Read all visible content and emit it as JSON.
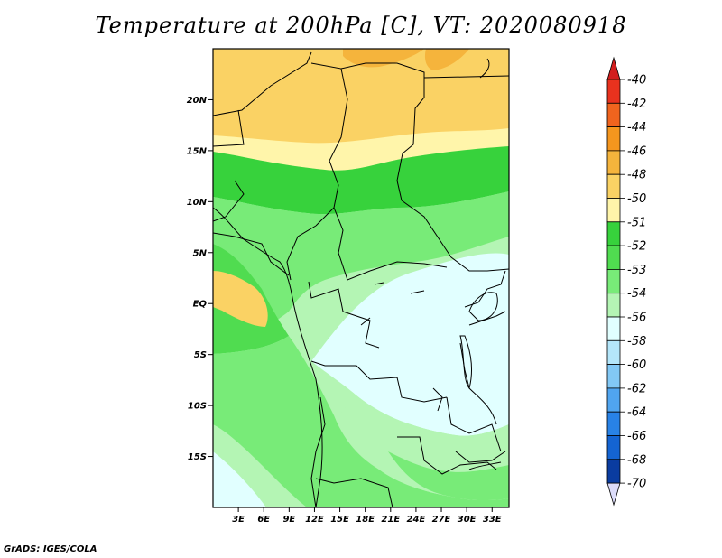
{
  "title": "Temperature at 200hPa [C], VT: 2020080918",
  "credit": "GrADS: IGES/COLA",
  "map": {
    "lon_ticks": [
      "3E",
      "6E",
      "9E",
      "12E",
      "15E",
      "18E",
      "21E",
      "24E",
      "27E",
      "30E",
      "33E"
    ],
    "lat_ticks": [
      "20N",
      "15N",
      "10N",
      "5N",
      "EQ",
      "5S",
      "10S",
      "15S"
    ],
    "lon_range": [
      0,
      35
    ],
    "lat_range": [
      -20,
      25
    ]
  },
  "legend": {
    "labels": [
      "-40",
      "-42",
      "-44",
      "-46",
      "-48",
      "-50",
      "-51",
      "-52",
      "-53",
      "-54",
      "-56",
      "-58",
      "-60",
      "-62",
      "-64",
      "-66",
      "-68",
      "-70"
    ],
    "colors": [
      "#e8321e",
      "#f0641e",
      "#f5961e",
      "#f5b43c",
      "#fad264",
      "#fff5aa",
      "#37d23c",
      "#50dc50",
      "#78eb78",
      "#b4f5b4",
      "#e1ffff",
      "#b4e6fa",
      "#82c8f5",
      "#50a5f0",
      "#2882e6",
      "#1464d2",
      "#0a3ca0",
      "#0a0a64"
    ],
    "top_arrow_color": "#d21e1e",
    "bottom_arrow_color": "#dcdcfa"
  }
}
